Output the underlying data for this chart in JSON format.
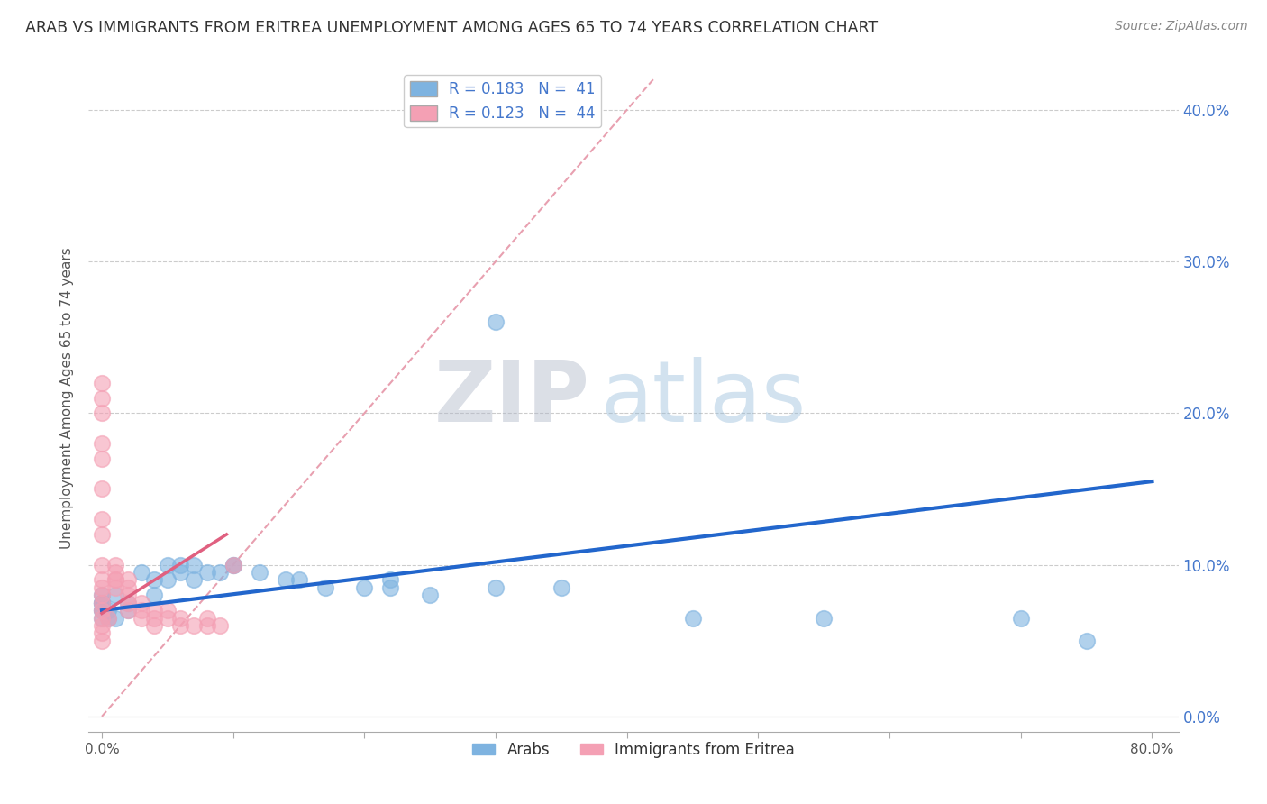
{
  "title": "ARAB VS IMMIGRANTS FROM ERITREA UNEMPLOYMENT AMONG AGES 65 TO 74 YEARS CORRELATION CHART",
  "source": "Source: ZipAtlas.com",
  "ylabel": "Unemployment Among Ages 65 to 74 years",
  "xlim": [
    0.0,
    0.8
  ],
  "ylim": [
    0.0,
    0.42
  ],
  "xticks": [
    0.0,
    0.1,
    0.2,
    0.3,
    0.4,
    0.5,
    0.6,
    0.7,
    0.8
  ],
  "xticklabels": [
    "0.0%",
    "",
    "",
    "",
    "",
    "",
    "",
    "",
    "80.0%"
  ],
  "yticks": [
    0.0,
    0.1,
    0.2,
    0.3,
    0.4
  ],
  "legend_r_arab": "R = 0.183",
  "legend_n_arab": "N = 41",
  "legend_r_eritrea": "R = 0.123",
  "legend_n_eritrea": "N = 44",
  "arab_color": "#7EB3E0",
  "eritrea_color": "#F4A0B4",
  "arab_line_color": "#2266CC",
  "eritrea_line_color": "#E06080",
  "diagonal_color": "#E8A0B0",
  "background_color": "#ffffff",
  "grid_color": "#cccccc",
  "title_color": "#333333",
  "watermark_zip": "ZIP",
  "watermark_atlas": "atlas",
  "arab_x": [
    0.0,
    0.0,
    0.0,
    0.0,
    0.0,
    0.0,
    0.0,
    0.005,
    0.005,
    0.01,
    0.01,
    0.02,
    0.02,
    0.03,
    0.04,
    0.04,
    0.05,
    0.05,
    0.06,
    0.06,
    0.07,
    0.07,
    0.08,
    0.09,
    0.1,
    0.1,
    0.12,
    0.14,
    0.15,
    0.17,
    0.2,
    0.22,
    0.22,
    0.25,
    0.3,
    0.3,
    0.35,
    0.45,
    0.55,
    0.7,
    0.75
  ],
  "arab_y": [
    0.07,
    0.07,
    0.075,
    0.075,
    0.075,
    0.08,
    0.065,
    0.07,
    0.065,
    0.065,
    0.08,
    0.075,
    0.07,
    0.095,
    0.08,
    0.09,
    0.09,
    0.1,
    0.1,
    0.095,
    0.09,
    0.1,
    0.095,
    0.095,
    0.1,
    0.1,
    0.095,
    0.09,
    0.09,
    0.085,
    0.085,
    0.09,
    0.085,
    0.08,
    0.26,
    0.085,
    0.085,
    0.065,
    0.065,
    0.065,
    0.05
  ],
  "eritrea_x": [
    0.0,
    0.0,
    0.0,
    0.0,
    0.0,
    0.0,
    0.0,
    0.0,
    0.0,
    0.0,
    0.0,
    0.0,
    0.0,
    0.0,
    0.0,
    0.0,
    0.0,
    0.0,
    0.005,
    0.01,
    0.01,
    0.01,
    0.01,
    0.01,
    0.02,
    0.02,
    0.02,
    0.02,
    0.02,
    0.03,
    0.03,
    0.03,
    0.04,
    0.04,
    0.04,
    0.05,
    0.05,
    0.06,
    0.06,
    0.07,
    0.08,
    0.08,
    0.09,
    0.1
  ],
  "eritrea_y": [
    0.05,
    0.055,
    0.06,
    0.065,
    0.07,
    0.075,
    0.08,
    0.085,
    0.09,
    0.1,
    0.12,
    0.13,
    0.15,
    0.17,
    0.18,
    0.2,
    0.21,
    0.22,
    0.065,
    0.09,
    0.085,
    0.09,
    0.095,
    0.1,
    0.07,
    0.075,
    0.08,
    0.085,
    0.09,
    0.065,
    0.07,
    0.075,
    0.06,
    0.065,
    0.07,
    0.065,
    0.07,
    0.06,
    0.065,
    0.06,
    0.06,
    0.065,
    0.06,
    0.1
  ],
  "arab_trend_x": [
    0.0,
    0.8
  ],
  "arab_trend_y": [
    0.07,
    0.155
  ],
  "eritrea_trend_x": [
    0.0,
    0.095
  ],
  "eritrea_trend_y": [
    0.068,
    0.12
  ]
}
